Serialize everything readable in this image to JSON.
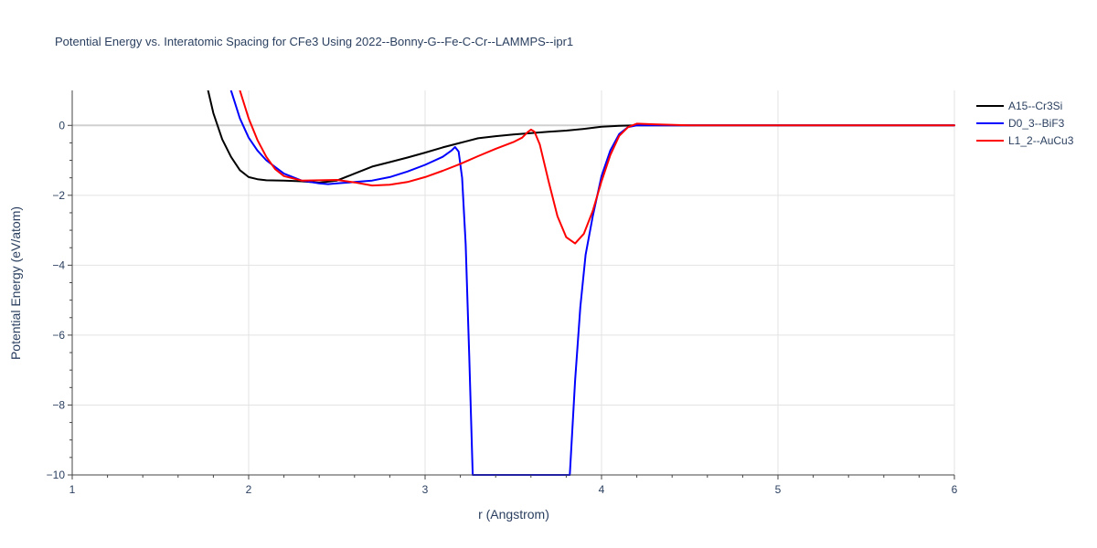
{
  "chart_data": {
    "type": "line",
    "title": "Potential Energy vs. Interatomic Spacing for CFe3 Using 2022--Bonny-G--Fe-C-Cr--LAMMPS--ipr1",
    "xlabel": "r (Angstrom)",
    "ylabel": "Potential Energy (eV/atom)",
    "xlim": [
      1,
      6
    ],
    "ylim": [
      -10,
      1
    ],
    "xticks": [
      1,
      2,
      3,
      4,
      5,
      6
    ],
    "xtick_labels": [
      "1",
      "2",
      "3",
      "4",
      "5",
      "6"
    ],
    "yticks": [
      -10,
      -8,
      -6,
      -4,
      -2,
      0
    ],
    "ytick_labels": [
      "−10",
      "−8",
      "−6",
      "−4",
      "−2",
      "0"
    ],
    "grid": true,
    "legend_position": "top-right",
    "series": [
      {
        "name": "A15--Cr3Si",
        "color": "#000000",
        "x": [
          1.77,
          1.8,
          1.85,
          1.9,
          1.95,
          2.0,
          2.05,
          2.1,
          2.2,
          2.3,
          2.4,
          2.5,
          2.6,
          2.7,
          2.8,
          2.9,
          3.0,
          3.1,
          3.2,
          3.3,
          3.4,
          3.5,
          3.6,
          3.7,
          3.8,
          3.9,
          4.0,
          4.1,
          4.2,
          4.3,
          4.5,
          5.0,
          5.5,
          6.0
        ],
        "y": [
          1.0,
          0.35,
          -0.4,
          -0.9,
          -1.28,
          -1.48,
          -1.54,
          -1.57,
          -1.58,
          -1.6,
          -1.64,
          -1.58,
          -1.38,
          -1.18,
          -1.05,
          -0.92,
          -0.78,
          -0.63,
          -0.5,
          -0.37,
          -0.31,
          -0.26,
          -0.22,
          -0.18,
          -0.15,
          -0.1,
          -0.04,
          -0.01,
          0.0,
          0.0,
          0.0,
          0.0,
          0.0,
          0.0
        ]
      },
      {
        "name": "D0_3--BiF3",
        "color": "#0000ff",
        "x": [
          1.9,
          1.95,
          2.0,
          2.05,
          2.1,
          2.2,
          2.3,
          2.4,
          2.45,
          2.5,
          2.6,
          2.7,
          2.8,
          2.9,
          3.0,
          3.1,
          3.15,
          3.17,
          3.19,
          3.21,
          3.23,
          3.25,
          3.27,
          3.82,
          3.85,
          3.88,
          3.91,
          3.95,
          4.0,
          4.05,
          4.1,
          4.15,
          4.2,
          4.3,
          5.0,
          6.0
        ],
        "y": [
          1.0,
          0.2,
          -0.35,
          -0.72,
          -1.0,
          -1.38,
          -1.58,
          -1.66,
          -1.68,
          -1.66,
          -1.62,
          -1.58,
          -1.48,
          -1.32,
          -1.13,
          -0.9,
          -0.72,
          -0.62,
          -0.75,
          -1.5,
          -3.4,
          -6.6,
          -10.0,
          -10.0,
          -7.3,
          -5.2,
          -3.7,
          -2.6,
          -1.45,
          -0.72,
          -0.25,
          -0.05,
          0.0,
          0.0,
          0.0,
          0.0
        ]
      },
      {
        "name": "L1_2--AuCu3",
        "color": "#ff0000",
        "x": [
          1.95,
          2.0,
          2.05,
          2.1,
          2.15,
          2.2,
          2.3,
          2.4,
          2.5,
          2.6,
          2.7,
          2.8,
          2.9,
          3.0,
          3.1,
          3.2,
          3.3,
          3.4,
          3.5,
          3.55,
          3.58,
          3.6,
          3.62,
          3.65,
          3.7,
          3.75,
          3.8,
          3.85,
          3.9,
          3.95,
          4.0,
          4.05,
          4.1,
          4.15,
          4.2,
          4.3,
          4.5,
          5.0,
          6.0
        ],
        "y": [
          1.0,
          0.2,
          -0.42,
          -0.9,
          -1.25,
          -1.45,
          -1.58,
          -1.57,
          -1.56,
          -1.63,
          -1.72,
          -1.7,
          -1.62,
          -1.48,
          -1.3,
          -1.1,
          -0.88,
          -0.67,
          -0.48,
          -0.35,
          -0.2,
          -0.12,
          -0.18,
          -0.55,
          -1.6,
          -2.6,
          -3.2,
          -3.38,
          -3.1,
          -2.45,
          -1.6,
          -0.85,
          -0.3,
          -0.05,
          0.05,
          0.03,
          0.0,
          0.0,
          0.0
        ]
      }
    ]
  }
}
